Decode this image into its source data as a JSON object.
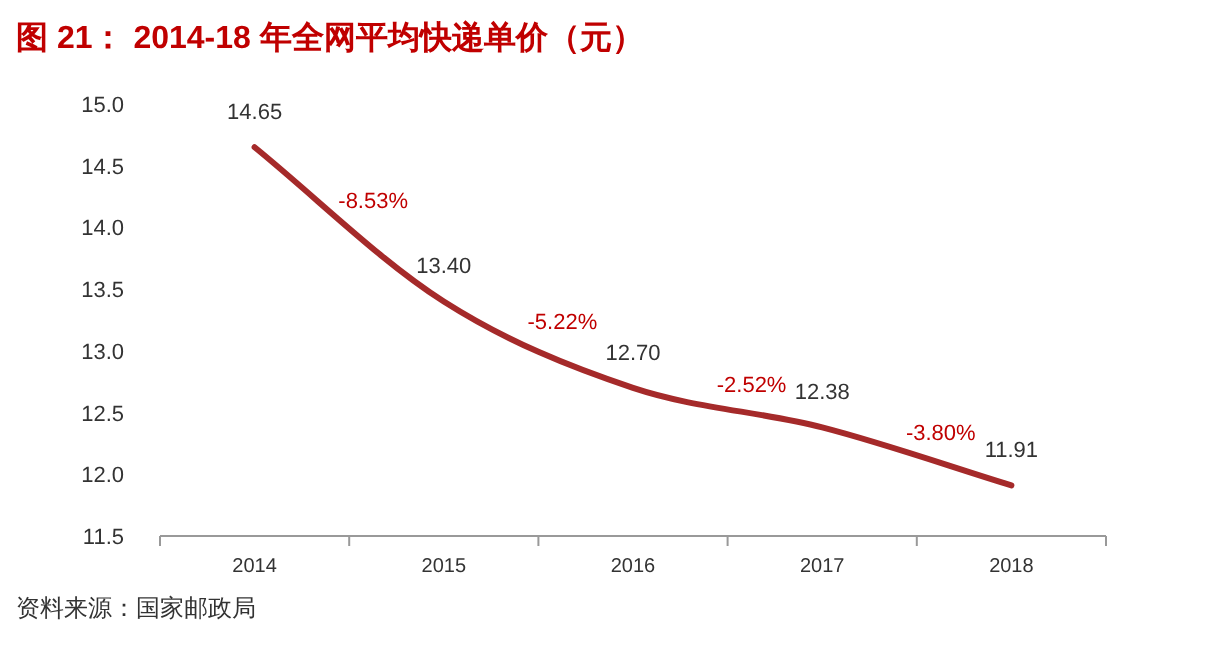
{
  "chart_data": {
    "type": "line",
    "title": "图 21： 2014-18 年全网平均快递单价（元）",
    "categories": [
      "2014",
      "2015",
      "2016",
      "2017",
      "2018"
    ],
    "series": [
      {
        "color": "#a52a2a",
        "values": [
          14.65,
          13.4,
          12.7,
          12.38,
          11.91
        ]
      }
    ],
    "value_labels": [
      "14.65",
      "13.40",
      "12.70",
      "12.38",
      "11.91"
    ],
    "ylim": [
      11.5,
      15.0
    ],
    "yticks": [
      {
        "value": 11.5,
        "label": "11.5"
      },
      {
        "value": 12,
        "label": "12.0"
      },
      {
        "value": 12.5,
        "label": "12.5"
      },
      {
        "value": 13,
        "label": "13.0"
      },
      {
        "value": 13.5,
        "label": "13.5"
      },
      {
        "value": 14,
        "label": "14.0"
      },
      {
        "value": 14.5,
        "label": "14.5"
      },
      {
        "value": 15,
        "label": "15.0"
      }
    ],
    "grid": false,
    "marker": "none",
    "line_style": "solid",
    "annotations": [
      "-8.53%",
      "-5.22%",
      "-2.52%",
      "-3.80%",
      "资料来源：国家邮政局"
    ]
  }
}
